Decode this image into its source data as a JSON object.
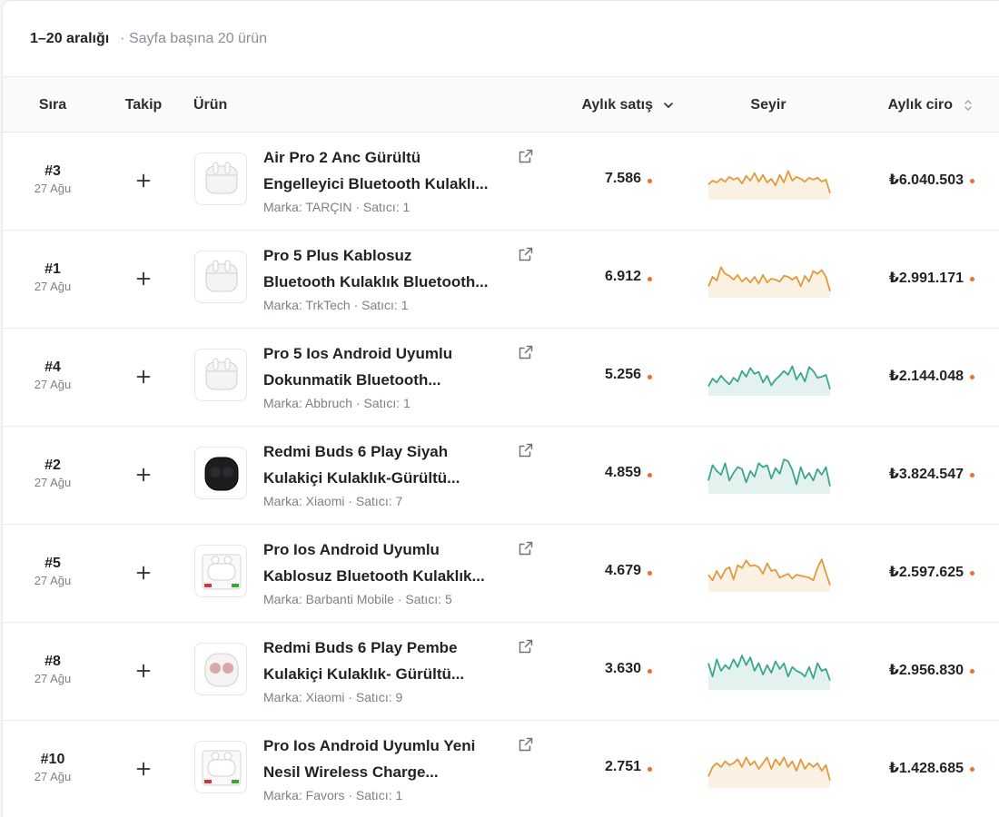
{
  "header": {
    "range_label": "1–20 aralığı",
    "per_page_label": "· Sayfa başına 20 ürün"
  },
  "columns": {
    "rank": "Sıra",
    "follow": "Takip",
    "product": "Ürün",
    "monthly_sales": "Aylık satış",
    "trend": "Seyir",
    "monthly_revenue": "Aylık ciro"
  },
  "colors": {
    "trend_orange": "#e09a3c",
    "trend_green": "#3aa68f",
    "accent_dot": "#e8702a"
  },
  "rows": [
    {
      "rank": "#3",
      "date": "27 Ağu",
      "title_line1": "Air Pro 2 Anc Gürültü",
      "title_line2": "Engelleyici Bluetooth Kulaklı...",
      "meta": "Marka: TARÇIN · Satıcı: 1",
      "sales": "7.586",
      "revenue": "₺6.040.503",
      "trend_color": "orange",
      "thumb_icon": "white-airpods-case-icon",
      "trend": [
        14,
        18,
        16,
        20,
        17,
        22,
        19,
        21,
        15,
        23,
        18,
        26,
        17,
        24,
        16,
        20,
        13,
        24,
        16,
        28,
        18,
        22,
        20,
        17,
        21,
        19,
        21,
        17,
        19,
        5
      ]
    },
    {
      "rank": "#1",
      "date": "27 Ağu",
      "title_line1": "Pro 5 Plus Kablosuz",
      "title_line2": "Bluetooth Kulaklık Bluetooth...",
      "meta": "Marka: TrkTech · Satıcı: 1",
      "sales": "6.912",
      "revenue": "₺2.991.171",
      "trend_color": "orange",
      "thumb_icon": "white-earbuds-case-icon",
      "trend": [
        10,
        20,
        16,
        30,
        23,
        21,
        17,
        22,
        15,
        19,
        14,
        20,
        13,
        22,
        14,
        18,
        17,
        15,
        21,
        20,
        17,
        20,
        10,
        21,
        15,
        26,
        23,
        27,
        20,
        5
      ]
    },
    {
      "rank": "#4",
      "date": "27 Ağu",
      "title_line1": "Pro 5 Ios Android Uyumlu",
      "title_line2": "Dokunmatik Bluetooth...",
      "meta": "Marka: Abbruch · Satıcı: 1",
      "sales": "5.256",
      "revenue": "₺2.144.048",
      "trend_color": "green",
      "thumb_icon": "white-earbuds-case-icon",
      "trend": [
        8,
        16,
        12,
        19,
        14,
        10,
        17,
        13,
        24,
        18,
        27,
        21,
        23,
        12,
        19,
        9,
        15,
        19,
        24,
        20,
        29,
        15,
        22,
        13,
        28,
        24,
        17,
        18,
        20,
        5
      ]
    },
    {
      "rank": "#2",
      "date": "27 Ağu",
      "title_line1": "Redmi Buds 6 Play Siyah",
      "title_line2": "Kulakiçi Kulaklık-Gürültü...",
      "meta": "Marka: Xiaomi · Satıcı: 7",
      "sales": "4.859",
      "revenue": "₺3.824.547",
      "trend_color": "green",
      "thumb_icon": "black-earbuds-case-icon",
      "trend": [
        12,
        28,
        22,
        18,
        30,
        12,
        20,
        26,
        24,
        10,
        22,
        16,
        30,
        26,
        28,
        14,
        25,
        19,
        34,
        32,
        23,
        8,
        26,
        14,
        20,
        12,
        24,
        18,
        26,
        6
      ]
    },
    {
      "rank": "#5",
      "date": "27 Ağu",
      "title_line1": "Pro Ios Android Uyumlu",
      "title_line2": "Kablosuz Bluetooth Kulaklık...",
      "meta": "Marka: Barbanti Mobile · Satıcı: 5",
      "sales": "4.679",
      "revenue": "₺2.597.625",
      "trend_color": "orange",
      "thumb_icon": "white-earbuds-box-icon",
      "trend": [
        16,
        10,
        20,
        12,
        21,
        24,
        11,
        26,
        23,
        31,
        25,
        26,
        24,
        17,
        28,
        20,
        21,
        13,
        15,
        17,
        12,
        16,
        15,
        14,
        13,
        10,
        23,
        32,
        18,
        5
      ]
    },
    {
      "rank": "#8",
      "date": "27 Ağu",
      "title_line1": "Redmi Buds 6 Play Pembe",
      "title_line2": "Kulakiçi Kulaklık- Gürültü...",
      "meta": "Marka: Xiaomi · Satıcı: 9",
      "sales": "3.630",
      "revenue": "₺2.956.830",
      "trend_color": "green",
      "thumb_icon": "pink-earbuds-case-icon",
      "trend": [
        26,
        12,
        30,
        18,
        24,
        20,
        30,
        22,
        34,
        24,
        32,
        18,
        26,
        14,
        24,
        16,
        28,
        20,
        26,
        12,
        22,
        18,
        16,
        12,
        22,
        10,
        26,
        18,
        20,
        8
      ]
    },
    {
      "rank": "#10",
      "date": "27 Ağu",
      "title_line1": "Pro Ios Android Uyumlu Yeni",
      "title_line2": "Nesil Wireless Charge...",
      "meta": "Marka: Favors · Satıcı: 1",
      "sales": "2.751",
      "revenue": "₺1.428.685",
      "trend_color": "orange",
      "thumb_icon": "white-earbuds-box-icon",
      "trend": [
        10,
        20,
        24,
        20,
        26,
        22,
        24,
        28,
        20,
        30,
        22,
        26,
        18,
        24,
        30,
        18,
        28,
        22,
        30,
        20,
        26,
        16,
        28,
        18,
        24,
        20,
        24,
        16,
        22,
        6
      ]
    }
  ]
}
